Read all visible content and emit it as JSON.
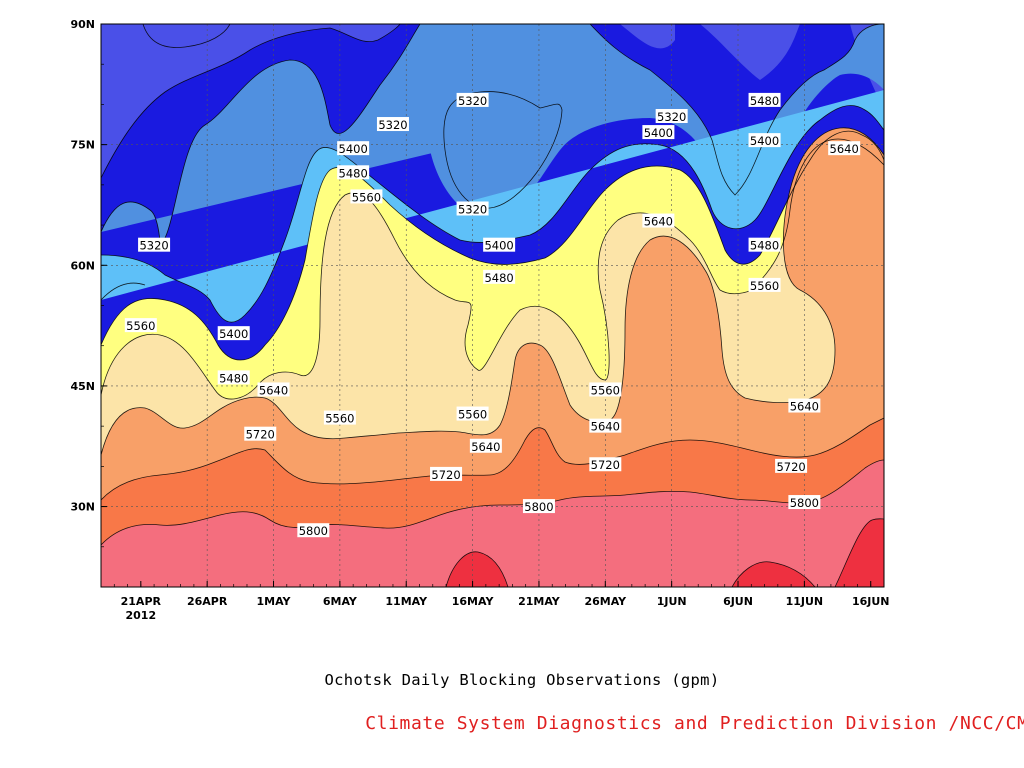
{
  "chart_data": {
    "type": "contour",
    "title": "Ochotsk Daily Blocking Observations (gpm)",
    "credit": "Climate System Diagnostics and Prediction Division /NCC/CMA",
    "credit_color": "#e02020",
    "x_ticks": [
      "21APR",
      "26APR",
      "1MAY",
      "6MAY",
      "11MAY",
      "16MAY",
      "21MAY",
      "26MAY",
      "1JUN",
      "6JUN",
      "11JUN",
      "16JUN"
    ],
    "x_year_label": "2012",
    "x_range": [
      "2012-04-18",
      "2012-06-16"
    ],
    "y_ticks": [
      "30N",
      "45N",
      "60N",
      "75N",
      "90N"
    ],
    "y_range": [
      20,
      90
    ],
    "levels": [
      5240,
      5320,
      5400,
      5480,
      5560,
      5640,
      5720,
      5800,
      5880
    ],
    "level_colors": [
      "#0c1464",
      "#1a1ae0",
      "#4a50e8",
      "#5090e0",
      "#5ec0f8",
      "#ffff80",
      "#fce4a8",
      "#f8a068",
      "#f87848",
      "#f46e7e",
      "#ee3040"
    ],
    "contour_labels": [
      {
        "text": "5320",
        "date": "2012-04-22",
        "lat": 62.5
      },
      {
        "text": "5320",
        "date": "2012-05-10",
        "lat": 77.5
      },
      {
        "text": "5320",
        "date": "2012-05-16",
        "lat": 80.5
      },
      {
        "text": "5320",
        "date": "2012-05-16",
        "lat": 67.0
      },
      {
        "text": "5320",
        "date": "2012-05-31",
        "lat": 78.5
      },
      {
        "text": "5400",
        "date": "2012-04-28",
        "lat": 51.5
      },
      {
        "text": "5400",
        "date": "2012-05-07",
        "lat": 74.5
      },
      {
        "text": "5400",
        "date": "2012-05-18",
        "lat": 62.5
      },
      {
        "text": "5400",
        "date": "2012-05-30",
        "lat": 76.5
      },
      {
        "text": "5400",
        "date": "2012-06-07",
        "lat": 75.5
      },
      {
        "text": "5480",
        "date": "2012-04-28",
        "lat": 46.0
      },
      {
        "text": "5480",
        "date": "2012-05-07",
        "lat": 71.5
      },
      {
        "text": "5480",
        "date": "2012-05-18",
        "lat": 58.5
      },
      {
        "text": "5480",
        "date": "2012-06-07",
        "lat": 80.5
      },
      {
        "text": "5480",
        "date": "2012-06-07",
        "lat": 62.5
      },
      {
        "text": "5560",
        "date": "2012-04-21",
        "lat": 52.5
      },
      {
        "text": "5560",
        "date": "2012-05-08",
        "lat": 68.5
      },
      {
        "text": "5560",
        "date": "2012-05-06",
        "lat": 41.0
      },
      {
        "text": "5560",
        "date": "2012-05-16",
        "lat": 41.5
      },
      {
        "text": "5560",
        "date": "2012-05-26",
        "lat": 44.5
      },
      {
        "text": "5560",
        "date": "2012-06-07",
        "lat": 57.5
      },
      {
        "text": "5640",
        "date": "2012-05-01",
        "lat": 44.5
      },
      {
        "text": "5640",
        "date": "2012-05-17",
        "lat": 37.5
      },
      {
        "text": "5640",
        "date": "2012-05-26",
        "lat": 40.0
      },
      {
        "text": "5640",
        "date": "2012-05-30",
        "lat": 65.5
      },
      {
        "text": "5640",
        "date": "2012-06-10",
        "lat": 42.5
      },
      {
        "text": "5640",
        "date": "2012-06-13",
        "lat": 74.5
      },
      {
        "text": "5720",
        "date": "2012-04-30",
        "lat": 39.0
      },
      {
        "text": "5720",
        "date": "2012-05-14",
        "lat": 34.0
      },
      {
        "text": "5720",
        "date": "2012-05-26",
        "lat": 35.2
      },
      {
        "text": "5720",
        "date": "2012-06-09",
        "lat": 35.0
      },
      {
        "text": "5800",
        "date": "2012-05-04",
        "lat": 27.0
      },
      {
        "text": "5800",
        "date": "2012-05-21",
        "lat": 30.0
      },
      {
        "text": "5800",
        "date": "2012-06-10",
        "lat": 30.5
      }
    ]
  }
}
